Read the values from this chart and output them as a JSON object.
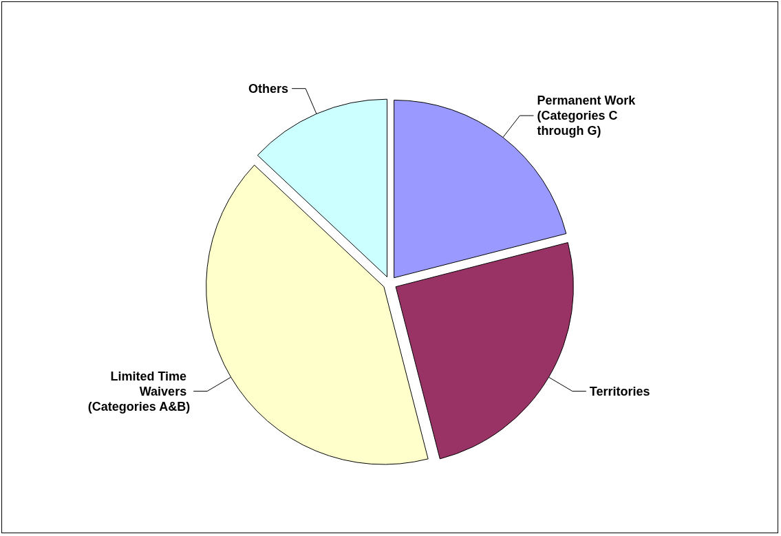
{
  "chart_data": {
    "type": "pie",
    "categories": [
      "Permanent Work (Categories C through G)",
      "Territories",
      "Limited Time Waivers (Categories A&B)",
      "Others"
    ],
    "values": [
      21,
      25,
      41,
      13
    ],
    "colors": [
      "#9999ff",
      "#993366",
      "#ffffcc",
      "#ccffff"
    ],
    "legend": false
  }
}
